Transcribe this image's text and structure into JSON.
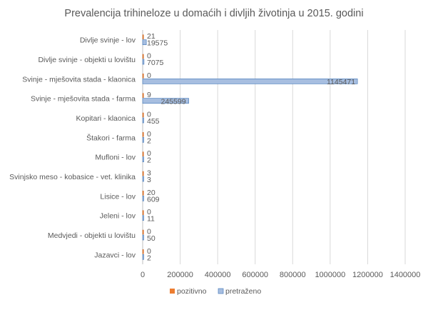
{
  "chart_data": {
    "type": "bar",
    "orientation": "horizontal",
    "title": "Prevalencija trihineloze  u domaćih i divljih životinja  u 2015. godini",
    "categories": [
      "Divlje svinje - lov",
      "Divlje svinje - objekti u lovištu",
      "Svinje - mješovita stada - klaonica",
      "Svinje - mješovita stada - farma",
      "Kopitari - klaonica",
      "Štakori - farma",
      "Mufloni - lov",
      "Svinjsko meso - kobasice - vet. klinika",
      "Lisice - lov",
      "Jeleni - lov",
      "Medvjedi - objekti u lovištu",
      "Jazavci - lov"
    ],
    "series": [
      {
        "name": "pozitivno",
        "color": "#ED7D31",
        "values": [
          21,
          0,
          0,
          9,
          0,
          0,
          0,
          3,
          20,
          0,
          0,
          0
        ]
      },
      {
        "name": "pretraženo",
        "color": "#4F81BD",
        "values": [
          19575,
          7075,
          1145471,
          245599,
          455,
          2,
          2,
          3,
          609,
          11,
          50,
          2
        ]
      }
    ],
    "xlim": [
      0,
      1400000
    ],
    "xticks": [
      "0",
      "200000",
      "400000",
      "600000",
      "800000",
      "1000000",
      "1200000",
      "1400000"
    ],
    "xtick_values": [
      0,
      200000,
      400000,
      600000,
      800000,
      1000000,
      1200000,
      1400000
    ],
    "grid": true,
    "legend_position": "bottom"
  }
}
